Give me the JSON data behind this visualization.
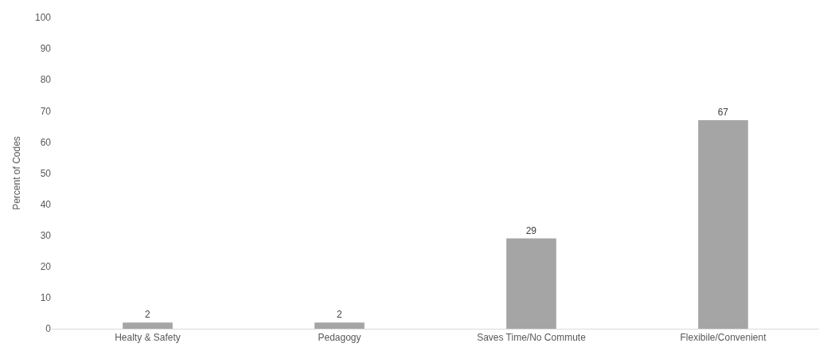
{
  "chart_data": {
    "type": "bar",
    "ylabel": "Percent of Codes",
    "categories": [
      "Healty & Safety",
      "Pedagogy",
      "Saves Time/No Commute",
      "Flexibile/Convenient"
    ],
    "values": [
      2,
      2,
      29,
      67
    ],
    "color": "#a5a5a5",
    "ylim": [
      0,
      100
    ],
    "yticks": [
      0,
      10,
      20,
      30,
      40,
      50,
      60,
      70,
      80,
      90,
      100
    ],
    "grid": false,
    "data_labels": true
  }
}
